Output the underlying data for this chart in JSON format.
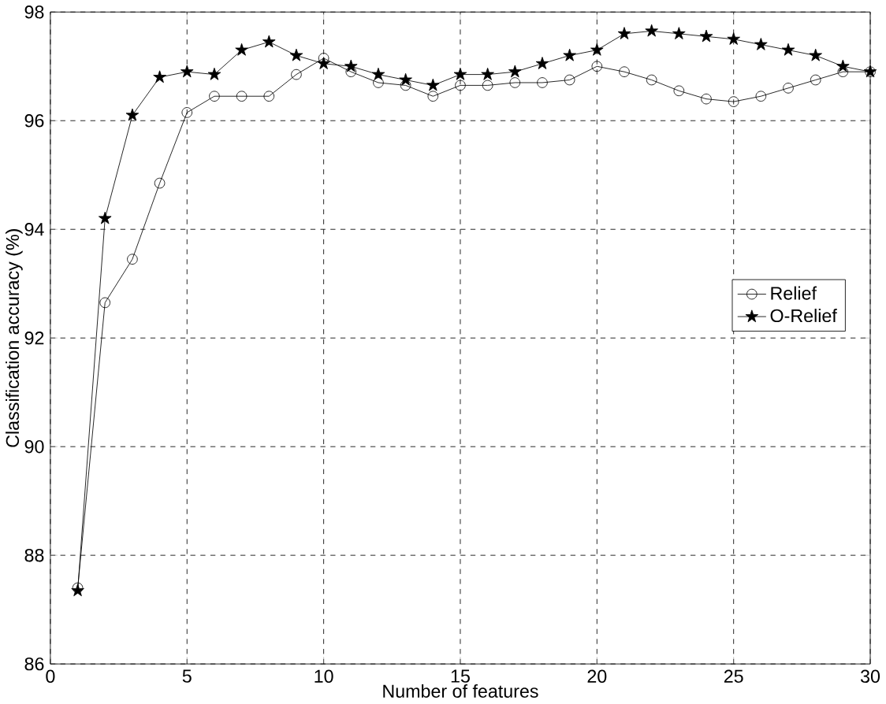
{
  "chart_data": {
    "type": "line",
    "xlabel": "Number of features",
    "ylabel": "Classification accuracy (%)",
    "x": [
      1,
      2,
      3,
      4,
      5,
      6,
      7,
      8,
      9,
      10,
      11,
      12,
      13,
      14,
      15,
      16,
      17,
      18,
      19,
      20,
      21,
      22,
      23,
      24,
      25,
      26,
      27,
      28,
      29,
      30
    ],
    "series": [
      {
        "name": "Relief",
        "color": "#000000",
        "marker": "circle",
        "values": [
          87.4,
          92.65,
          93.45,
          94.85,
          96.15,
          96.45,
          96.45,
          96.45,
          96.85,
          97.15,
          96.9,
          96.7,
          96.65,
          96.45,
          96.65,
          96.65,
          96.7,
          96.7,
          96.75,
          97.0,
          96.9,
          96.75,
          96.55,
          96.4,
          96.35,
          96.45,
          96.6,
          96.75,
          96.9,
          96.9
        ]
      },
      {
        "name": "O-Relief",
        "color": "#000000",
        "marker": "star",
        "values": [
          87.35,
          94.2,
          96.1,
          96.8,
          96.9,
          96.85,
          97.3,
          97.45,
          97.2,
          97.05,
          97.0,
          96.85,
          96.75,
          96.65,
          96.85,
          96.85,
          96.9,
          97.05,
          97.2,
          97.3,
          97.6,
          97.65,
          97.6,
          97.55,
          97.5,
          97.4,
          97.3,
          97.2,
          97.0,
          96.9
        ]
      }
    ],
    "xlim": [
      0,
      30
    ],
    "ylim": [
      86,
      98
    ],
    "xticks": [
      0,
      5,
      10,
      15,
      20,
      25,
      30
    ],
    "yticks": [
      86,
      88,
      90,
      92,
      94,
      96,
      98
    ],
    "grid": true,
    "legend": "right",
    "line_style": "solid"
  }
}
